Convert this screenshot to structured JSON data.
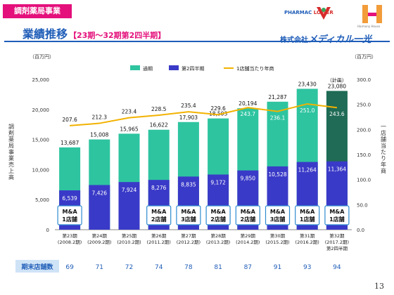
{
  "header": {
    "segment_tag": "調剤薬局事業",
    "title": "業績推移",
    "subtitle": "【23期～32期第2四半期】",
    "logo_pharmac": "PHARMAC",
    "logo_lower": "LOWER",
    "logo_harmony": "Harmony House",
    "company_prefix": "株式会社",
    "company_name": "メディカル一光"
  },
  "page_number": "13",
  "chart_data": {
    "type": "bar",
    "left_unit": "（百万円）",
    "right_unit": "（百万円）",
    "ylabel": "調剤薬局事業売上高",
    "y2label": "一店舗当たり年商",
    "ylim": [
      0,
      25000
    ],
    "yticks": [
      "0",
      "5,000",
      "10,000",
      "15,000",
      "20,000",
      "25,000"
    ],
    "y2lim": [
      0,
      300
    ],
    "y2ticks": [
      "0.0",
      "50.0",
      "100.0",
      "150.0",
      "200.0",
      "250.0",
      "300.0"
    ],
    "categories": [
      {
        "period": "第23期",
        "year": "(2008.2期)",
        "extra": ""
      },
      {
        "period": "第24期",
        "year": "(2009.2期)",
        "extra": ""
      },
      {
        "period": "第25期",
        "year": "(2010.2期)",
        "extra": ""
      },
      {
        "period": "第26期",
        "year": "(2011.2期)",
        "extra": ""
      },
      {
        "period": "第27期",
        "year": "(2012.2期)",
        "extra": ""
      },
      {
        "period": "第28期",
        "year": "(2013.2期)",
        "extra": ""
      },
      {
        "period": "第29期",
        "year": "(2014.2期)",
        "extra": ""
      },
      {
        "period": "第30期",
        "year": "(2015.2期)",
        "extra": ""
      },
      {
        "period": "第31期",
        "year": "(2016.2期)",
        "extra": ""
      },
      {
        "period": "第32期",
        "year": "(2017.2期)",
        "extra": "第2四半期"
      }
    ],
    "legend_position": "top",
    "series": [
      {
        "name": "通期",
        "color": "#2ec4a0",
        "values": [
          13687,
          15008,
          15965,
          16622,
          17903,
          18503,
          20194,
          21287,
          23430,
          23080
        ],
        "labels": [
          "13,687",
          "15,008",
          "15,965",
          "16,622",
          "17,903",
          "18,503",
          "20,194",
          "21,287",
          "23,430",
          "23,080"
        ]
      },
      {
        "name": "第2四半期",
        "color": "#3a3ac8",
        "values": [
          6539,
          7426,
          7924,
          8276,
          8835,
          9172,
          9850,
          10528,
          11264,
          11364
        ],
        "labels": [
          "6,539",
          "7,426",
          "7,924",
          "8,276",
          "8,835",
          "9,172",
          "9,850",
          "10,528",
          "11,264",
          "11,364"
        ]
      },
      {
        "name": "1店舗当たり年商",
        "color": "#f2b200",
        "axis": "right",
        "values": [
          207.6,
          212.3,
          223.4,
          228.5,
          235.4,
          229.6,
          243.7,
          236.1,
          251.0,
          243.6
        ],
        "labels": [
          "207.6",
          "212.3",
          "223.4",
          "228.5",
          "235.4",
          "229.6",
          "243.7",
          "236.1",
          "251.0",
          "243.6"
        ]
      }
    ],
    "last_bar_annotation": "（計画）",
    "last_bar_color": "#1f6b55",
    "ma_boxes": [
      {
        "line1": "M&A",
        "line2": "1店舗"
      },
      {
        "line1": "",
        "line2": ""
      },
      {
        "line1": "",
        "line2": ""
      },
      {
        "line1": "M&A",
        "line2": "2店舗"
      },
      {
        "line1": "M&A",
        "line2": "3店舗"
      },
      {
        "line1": "M&A",
        "line2": "2店舗"
      },
      {
        "line1": "M&A",
        "line2": "2店舗"
      },
      {
        "line1": "M&A",
        "line2": "3店舗"
      },
      {
        "line1": "M&A",
        "line2": "1店舗"
      },
      {
        "line1": "M&A",
        "line2": "1店舗"
      }
    ],
    "store_count_label": "期末店舗数",
    "store_counts": [
      "69",
      "71",
      "72",
      "74",
      "78",
      "81",
      "87",
      "91",
      "93",
      "94"
    ]
  }
}
